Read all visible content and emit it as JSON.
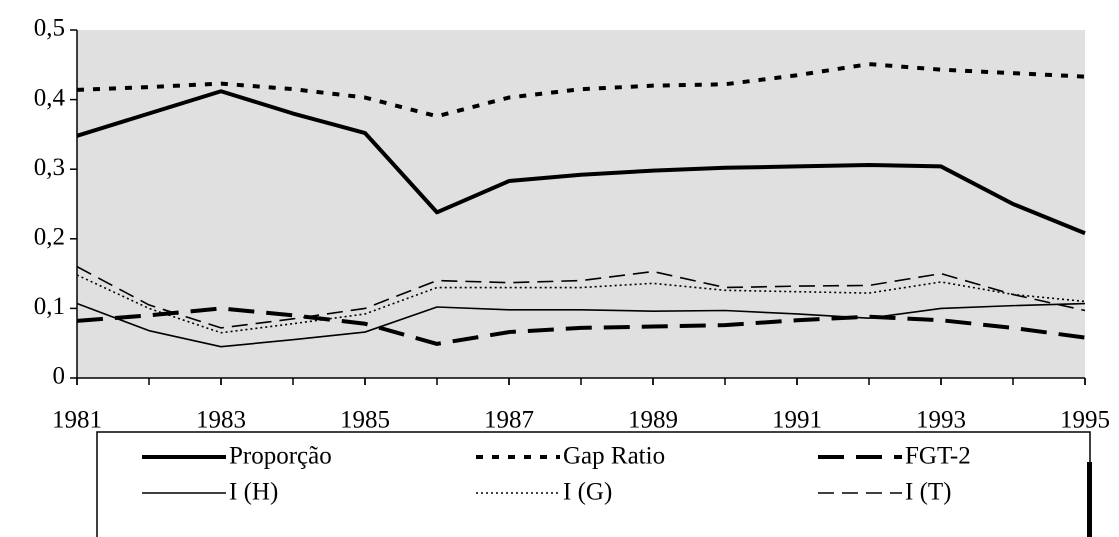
{
  "chart_data": {
    "type": "line",
    "x": [
      1981,
      1982,
      1983,
      1984,
      1985,
      1986,
      1987,
      1988,
      1989,
      1990,
      1991,
      1992,
      1993,
      1994,
      1995
    ],
    "xlim": [
      1981,
      1995
    ],
    "xticks": [
      1981,
      1983,
      1985,
      1987,
      1989,
      1991,
      1993,
      1995
    ],
    "ylim": [
      0,
      0.5
    ],
    "yticks": [
      0,
      {
        "value": 0.1,
        "label": "0,1"
      },
      {
        "value": 0.2,
        "label": "0,2"
      },
      {
        "value": 0.3,
        "label": "0,3"
      },
      {
        "value": 0.4,
        "label": "0,4"
      },
      {
        "value": 0.5,
        "label": "0,5"
      }
    ],
    "background": "#e0e0e0",
    "series": [
      {
        "name": "Proporção",
        "color": "#000000",
        "style": "solid",
        "weight": "heavy",
        "values": [
          0.348,
          0.38,
          0.412,
          0.38,
          0.352,
          0.238,
          0.283,
          0.292,
          0.298,
          0.302,
          0.304,
          0.306,
          0.304,
          0.25,
          0.208
        ]
      },
      {
        "name": "Gap Ratio",
        "color": "#000000",
        "style": "dotted",
        "weight": "heavy",
        "values": [
          0.414,
          0.418,
          0.423,
          0.415,
          0.403,
          0.376,
          0.403,
          0.415,
          0.42,
          0.422,
          0.435,
          0.451,
          0.443,
          0.438,
          0.433
        ]
      },
      {
        "name": "FGT-2",
        "color": "#000000",
        "style": "dashed",
        "weight": "heavy",
        "values": [
          0.082,
          0.09,
          0.1,
          0.09,
          0.078,
          0.049,
          0.066,
          0.072,
          0.074,
          0.076,
          0.083,
          0.088,
          0.083,
          0.072,
          0.058
        ]
      },
      {
        "name": "I (H)",
        "color": "#000000",
        "style": "solid",
        "weight": "light",
        "values": [
          0.107,
          0.068,
          0.045,
          0.055,
          0.066,
          0.102,
          0.098,
          0.098,
          0.096,
          0.097,
          0.092,
          0.086,
          0.1,
          0.104,
          0.107
        ]
      },
      {
        "name": "I (G)",
        "color": "#000000",
        "style": "dotted",
        "weight": "light",
        "values": [
          0.148,
          0.1,
          0.065,
          0.078,
          0.092,
          0.13,
          0.13,
          0.13,
          0.136,
          0.126,
          0.124,
          0.122,
          0.138,
          0.12,
          0.11
        ]
      },
      {
        "name": "I (T)",
        "color": "#000000",
        "style": "dashed",
        "weight": "light",
        "values": [
          0.16,
          0.105,
          0.072,
          0.085,
          0.1,
          0.14,
          0.137,
          0.14,
          0.153,
          0.13,
          0.132,
          0.133,
          0.15,
          0.12,
          0.097
        ]
      }
    ]
  }
}
